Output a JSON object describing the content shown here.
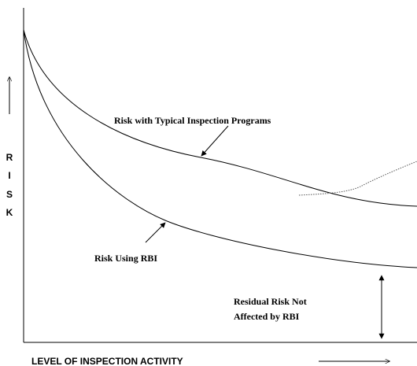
{
  "axis_labels": {
    "y": [
      "R",
      "I",
      "S",
      "K"
    ],
    "x": "LEVEL OF INSPECTION ACTIVITY"
  },
  "curves": {
    "typical": "Risk with Typical Inspection Programs",
    "rbi": "Risk Using RBI"
  },
  "residual": [
    "Residual Risk Not",
    "Affected by RBI"
  ]
}
